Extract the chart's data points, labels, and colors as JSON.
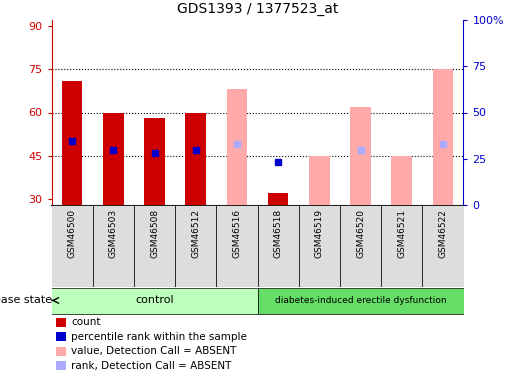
{
  "title": "GDS1393 / 1377523_at",
  "samples": [
    "GSM46500",
    "GSM46503",
    "GSM46508",
    "GSM46512",
    "GSM46516",
    "GSM46518",
    "GSM46519",
    "GSM46520",
    "GSM46521",
    "GSM46522"
  ],
  "groups": [
    "control",
    "control",
    "control",
    "control",
    "control",
    "diabetes",
    "diabetes",
    "diabetes",
    "diabetes",
    "diabetes"
  ],
  "ylim_left": [
    28,
    92
  ],
  "ylim_right": [
    0,
    100
  ],
  "yticks_left": [
    30,
    45,
    60,
    75,
    90
  ],
  "yticks_right": [
    0,
    25,
    50,
    75,
    100
  ],
  "ytick_labels_left": [
    "30",
    "45",
    "60",
    "75",
    "90"
  ],
  "ytick_labels_right": [
    "0",
    "25",
    "50",
    "75",
    "100%"
  ],
  "hlines": [
    45,
    60,
    75
  ],
  "count_values": [
    71,
    60,
    58,
    60,
    null,
    32,
    null,
    null,
    null,
    null
  ],
  "rank_values": [
    50,
    47,
    46,
    47,
    null,
    43,
    null,
    null,
    null,
    null
  ],
  "absent_value_values": [
    null,
    null,
    null,
    null,
    68,
    null,
    45,
    62,
    45,
    75
  ],
  "absent_rank_values": [
    null,
    null,
    null,
    null,
    49,
    null,
    null,
    47,
    null,
    49
  ],
  "color_red_dark": "#cc0000",
  "color_blue_dark": "#0000cc",
  "color_pink": "#ffaaaa",
  "color_blue_light": "#aaaaff",
  "color_green_light": "#bbffbb",
  "color_green_medium": "#66dd66",
  "color_bg_sample": "#dddddd",
  "color_left_axis": "#cc0000",
  "color_right_axis": "#0000cc",
  "bar_width": 0.5,
  "group_label_control": "control",
  "group_label_diabetes": "diabetes-induced erectile dysfunction",
  "disease_state_label": "disease state",
  "legend_items": [
    {
      "color": "#cc0000",
      "label": "count"
    },
    {
      "color": "#0000cc",
      "label": "percentile rank within the sample"
    },
    {
      "color": "#ffaaaa",
      "label": "value, Detection Call = ABSENT"
    },
    {
      "color": "#aaaaff",
      "label": "rank, Detection Call = ABSENT"
    }
  ]
}
